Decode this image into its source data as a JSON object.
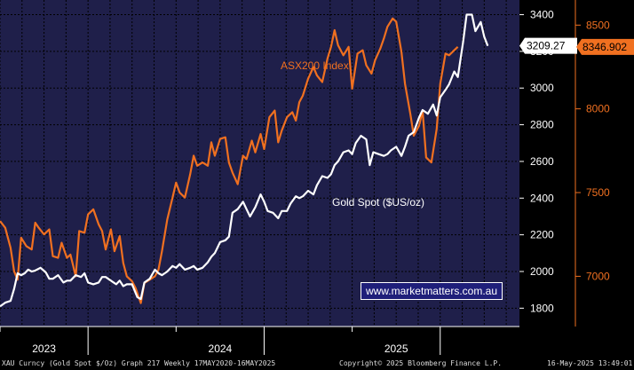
{
  "chart_data": {
    "type": "line",
    "x_range": [
      2022.5,
      2025.45
    ],
    "x_ticks": [
      "2023",
      "2024",
      "2025"
    ],
    "gold": {
      "name": "Gold Spot ($US/oz)",
      "color": "#ffffff",
      "axis": "left-inner",
      "ylim": [
        1700,
        3480
      ],
      "yticks": [
        1800,
        2000,
        2200,
        2400,
        2600,
        2800,
        3000,
        3200,
        3400
      ],
      "last_value": "3209.27",
      "points": [
        [
          2022.5,
          1810
        ],
        [
          2022.53,
          1830
        ],
        [
          2022.56,
          1840
        ],
        [
          2022.58,
          1905
        ],
        [
          2022.6,
          1990
        ],
        [
          2022.62,
          1980
        ],
        [
          2022.64,
          1990
        ],
        [
          2022.66,
          2010
        ],
        [
          2022.68,
          2000
        ],
        [
          2022.7,
          2005
        ],
        [
          2022.73,
          2020
        ],
        [
          2022.76,
          1995
        ],
        [
          2022.78,
          1960
        ],
        [
          2022.8,
          1960
        ],
        [
          2022.83,
          1980
        ],
        [
          2022.86,
          1940
        ],
        [
          2022.88,
          1950
        ],
        [
          2022.9,
          1950
        ],
        [
          2022.93,
          1980
        ],
        [
          2022.96,
          1970
        ],
        [
          2022.98,
          1990
        ],
        [
          2023.0,
          1940
        ],
        [
          2023.03,
          1930
        ],
        [
          2023.06,
          1940
        ],
        [
          2023.08,
          1970
        ],
        [
          2023.1,
          1970
        ],
        [
          2023.13,
          1950
        ],
        [
          2023.16,
          1930
        ],
        [
          2023.18,
          1950
        ],
        [
          2023.2,
          1920
        ],
        [
          2023.22,
          1930
        ],
        [
          2023.25,
          1930
        ],
        [
          2023.28,
          1860
        ],
        [
          2023.3,
          1850
        ],
        [
          2023.32,
          1940
        ],
        [
          2023.35,
          1960
        ],
        [
          2023.38,
          2010
        ],
        [
          2023.4,
          1990
        ],
        [
          2023.42,
          1980
        ],
        [
          2023.45,
          2000
        ],
        [
          2023.48,
          2030
        ],
        [
          2023.5,
          2020
        ],
        [
          2023.52,
          2040
        ],
        [
          2023.55,
          2010
        ],
        [
          2023.58,
          2020
        ],
        [
          2023.6,
          2030
        ],
        [
          2023.62,
          2010
        ],
        [
          2023.65,
          2020
        ],
        [
          2023.68,
          2050
        ],
        [
          2023.7,
          2080
        ],
        [
          2023.72,
          2100
        ],
        [
          2023.75,
          2160
        ],
        [
          2023.78,
          2170
        ],
        [
          2023.8,
          2190
        ],
        [
          2023.82,
          2320
        ],
        [
          2023.85,
          2340
        ],
        [
          2023.88,
          2380
        ],
        [
          2023.9,
          2340
        ],
        [
          2023.92,
          2300
        ],
        [
          2023.95,
          2350
        ],
        [
          2023.98,
          2420
        ],
        [
          2024.0,
          2380
        ],
        [
          2024.02,
          2330
        ],
        [
          2024.05,
          2320
        ],
        [
          2024.08,
          2290
        ],
        [
          2024.1,
          2330
        ],
        [
          2024.13,
          2330
        ],
        [
          2024.15,
          2370
        ],
        [
          2024.18,
          2410
        ],
        [
          2024.2,
          2400
        ],
        [
          2024.22,
          2410
        ],
        [
          2024.25,
          2440
        ],
        [
          2024.28,
          2420
        ],
        [
          2024.3,
          2470
        ],
        [
          2024.33,
          2520
        ],
        [
          2024.36,
          2510
        ],
        [
          2024.38,
          2530
        ],
        [
          2024.4,
          2580
        ],
        [
          2024.42,
          2600
        ],
        [
          2024.45,
          2650
        ],
        [
          2024.48,
          2660
        ],
        [
          2024.5,
          2640
        ],
        [
          2024.52,
          2700
        ],
        [
          2024.55,
          2740
        ],
        [
          2024.58,
          2720
        ],
        [
          2024.6,
          2580
        ],
        [
          2024.62,
          2650
        ],
        [
          2024.65,
          2640
        ],
        [
          2024.68,
          2630
        ],
        [
          2024.7,
          2640
        ],
        [
          2024.72,
          2660
        ],
        [
          2024.75,
          2680
        ],
        [
          2024.78,
          2630
        ],
        [
          2024.8,
          2680
        ],
        [
          2024.82,
          2740
        ],
        [
          2024.85,
          2760
        ],
        [
          2024.88,
          2840
        ],
        [
          2024.9,
          2880
        ],
        [
          2024.93,
          2860
        ],
        [
          2024.96,
          2910
        ],
        [
          2024.98,
          2850
        ],
        [
          2025.0,
          2950
        ],
        [
          2025.03,
          2990
        ],
        [
          2025.05,
          3020
        ],
        [
          2025.08,
          3090
        ],
        [
          2025.1,
          3060
        ],
        [
          2025.13,
          3250
        ],
        [
          2025.15,
          3400
        ],
        [
          2025.18,
          3400
        ],
        [
          2025.2,
          3310
        ],
        [
          2025.23,
          3360
        ],
        [
          2025.25,
          3280
        ],
        [
          2025.27,
          3230
        ]
      ]
    },
    "asx": {
      "name": "ASX200 Index",
      "color": "#f07020",
      "axis": "right",
      "ylim": [
        6700,
        8650
      ],
      "yticks": [
        7000,
        7500,
        8000,
        8500
      ],
      "last_value": "8346.902",
      "points": [
        [
          2022.5,
          7330
        ],
        [
          2022.53,
          7290
        ],
        [
          2022.56,
          7170
        ],
        [
          2022.58,
          7030
        ],
        [
          2022.6,
          6980
        ],
        [
          2022.62,
          7230
        ],
        [
          2022.65,
          7180
        ],
        [
          2022.68,
          7160
        ],
        [
          2022.7,
          7320
        ],
        [
          2022.72,
          7290
        ],
        [
          2022.75,
          7250
        ],
        [
          2022.78,
          7280
        ],
        [
          2022.8,
          7120
        ],
        [
          2022.83,
          7110
        ],
        [
          2022.85,
          7200
        ],
        [
          2022.88,
          7110
        ],
        [
          2022.9,
          7130
        ],
        [
          2022.93,
          7000
        ],
        [
          2022.95,
          7270
        ],
        [
          2022.98,
          7260
        ],
        [
          2023.0,
          7370
        ],
        [
          2023.03,
          7400
        ],
        [
          2023.06,
          7310
        ],
        [
          2023.08,
          7270
        ],
        [
          2023.1,
          7160
        ],
        [
          2023.13,
          7280
        ],
        [
          2023.15,
          7150
        ],
        [
          2023.18,
          7240
        ],
        [
          2023.2,
          7080
        ],
        [
          2023.22,
          7000
        ],
        [
          2023.25,
          6970
        ],
        [
          2023.27,
          6930
        ],
        [
          2023.3,
          6840
        ],
        [
          2023.32,
          6960
        ],
        [
          2023.35,
          6980
        ],
        [
          2023.38,
          7000
        ],
        [
          2023.4,
          7040
        ],
        [
          2023.42,
          7150
        ],
        [
          2023.45,
          7340
        ],
        [
          2023.48,
          7470
        ],
        [
          2023.5,
          7560
        ],
        [
          2023.52,
          7500
        ],
        [
          2023.55,
          7470
        ],
        [
          2023.58,
          7610
        ],
        [
          2023.6,
          7720
        ],
        [
          2023.62,
          7660
        ],
        [
          2023.65,
          7680
        ],
        [
          2023.68,
          7660
        ],
        [
          2023.7,
          7800
        ],
        [
          2023.72,
          7720
        ],
        [
          2023.75,
          7820
        ],
        [
          2023.78,
          7830
        ],
        [
          2023.8,
          7680
        ],
        [
          2023.82,
          7620
        ],
        [
          2023.85,
          7550
        ],
        [
          2023.88,
          7720
        ],
        [
          2023.9,
          7700
        ],
        [
          2023.93,
          7810
        ],
        [
          2023.95,
          7740
        ],
        [
          2023.98,
          7850
        ],
        [
          2024.0,
          7760
        ],
        [
          2024.03,
          7950
        ],
        [
          2024.06,
          7990
        ],
        [
          2024.08,
          7800
        ],
        [
          2024.1,
          7870
        ],
        [
          2024.13,
          7950
        ],
        [
          2024.16,
          7980
        ],
        [
          2024.18,
          7930
        ],
        [
          2024.2,
          8040
        ],
        [
          2024.22,
          8080
        ],
        [
          2024.25,
          8180
        ],
        [
          2024.28,
          8250
        ],
        [
          2024.3,
          8200
        ],
        [
          2024.33,
          8160
        ],
        [
          2024.36,
          8300
        ],
        [
          2024.38,
          8370
        ],
        [
          2024.4,
          8470
        ],
        [
          2024.42,
          8380
        ],
        [
          2024.45,
          8320
        ],
        [
          2024.48,
          8370
        ],
        [
          2024.5,
          8120
        ],
        [
          2024.53,
          8330
        ],
        [
          2024.56,
          8350
        ],
        [
          2024.58,
          8260
        ],
        [
          2024.61,
          8210
        ],
        [
          2024.63,
          8290
        ],
        [
          2024.66,
          8360
        ],
        [
          2024.68,
          8420
        ],
        [
          2024.7,
          8490
        ],
        [
          2024.73,
          8540
        ],
        [
          2024.75,
          8520
        ],
        [
          2024.78,
          8340
        ],
        [
          2024.8,
          8150
        ],
        [
          2024.83,
          7970
        ],
        [
          2024.85,
          7840
        ],
        [
          2024.88,
          7900
        ],
        [
          2024.9,
          7990
        ],
        [
          2024.92,
          7710
        ],
        [
          2024.95,
          7680
        ],
        [
          2024.98,
          7880
        ],
        [
          2025.0,
          8150
        ],
        [
          2025.03,
          8330
        ],
        [
          2025.05,
          8320
        ],
        [
          2025.08,
          8350
        ],
        [
          2025.1,
          8370
        ]
      ]
    },
    "annotations": [
      {
        "text": "ASX200 Index",
        "color": "#f07020"
      },
      {
        "text": "Gold Spot ($US/oz)",
        "color": "#ffffff"
      }
    ],
    "grid": true
  },
  "watermark": "www.marketmatters.com.au",
  "footer": {
    "left": "XAU Curncy (Gold Spot  $/Oz) Graph 217  Weekly 17MAY2020-16MAY2025",
    "center": "Copyright© 2025 Bloomberg Finance L.P.",
    "right": "16-May-2025 13:49:01"
  }
}
